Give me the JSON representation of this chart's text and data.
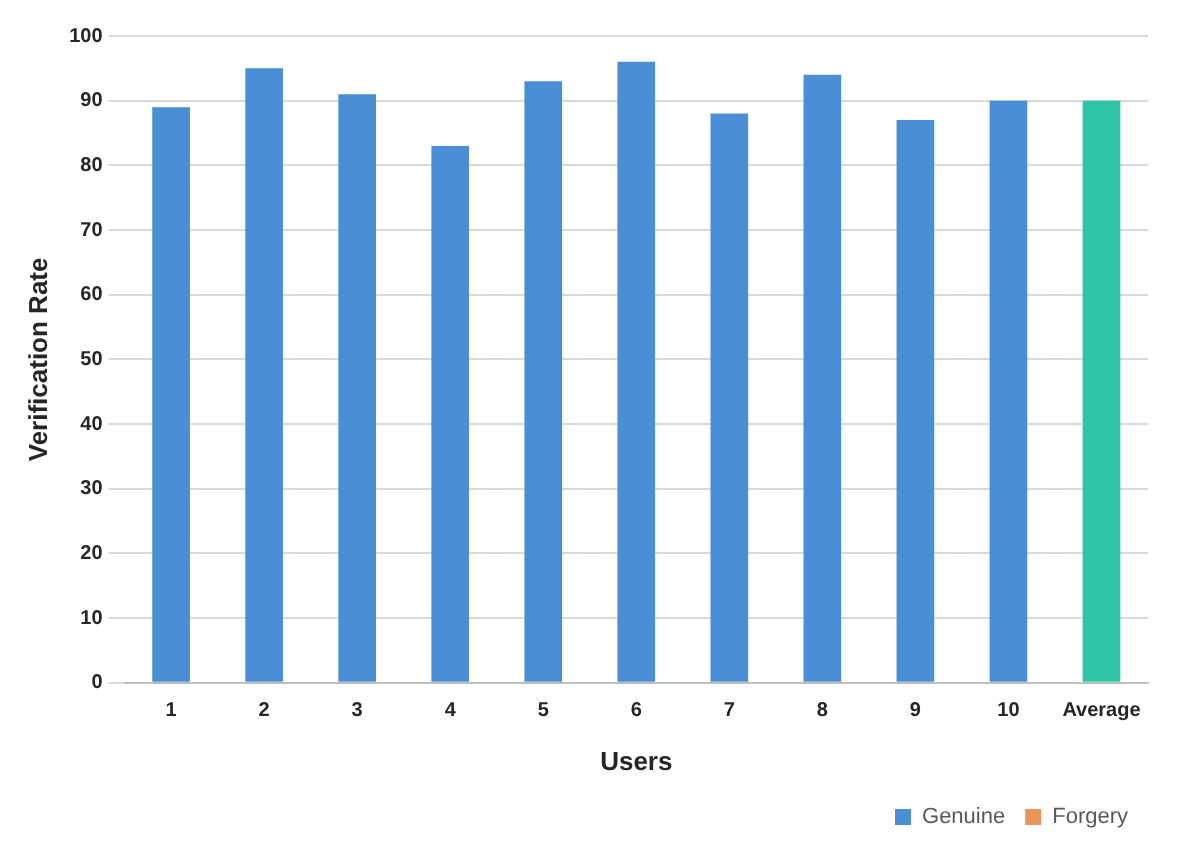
{
  "chart_data": {
    "type": "bar",
    "xlabel": "Users",
    "ylabel": "Verification Rate",
    "categories": [
      "1",
      "2",
      "3",
      "4",
      "5",
      "6",
      "7",
      "8",
      "9",
      "10",
      "Average"
    ],
    "series": [
      {
        "name": "Genuine",
        "color": "#4a8fd6",
        "colors": [
          "#4a8fd6",
          "#4a8fd6",
          "#4a8fd6",
          "#4a8fd6",
          "#4a8fd6",
          "#4a8fd6",
          "#4a8fd6",
          "#4a8fd6",
          "#4a8fd6",
          "#4a8fd6",
          "#2ec4a6"
        ],
        "values": [
          89,
          95,
          91,
          83,
          93,
          96,
          88,
          94,
          87,
          90,
          90
        ]
      },
      {
        "name": "Forgery",
        "color": "#e8955a",
        "values": [
          null,
          null,
          null,
          null,
          null,
          null,
          null,
          null,
          null,
          null,
          null
        ]
      }
    ],
    "ylim": [
      0,
      100
    ],
    "yticks": [
      0,
      10,
      20,
      30,
      40,
      50,
      60,
      70,
      80,
      90,
      100
    ],
    "grid": "y",
    "legend": "bottom right"
  }
}
